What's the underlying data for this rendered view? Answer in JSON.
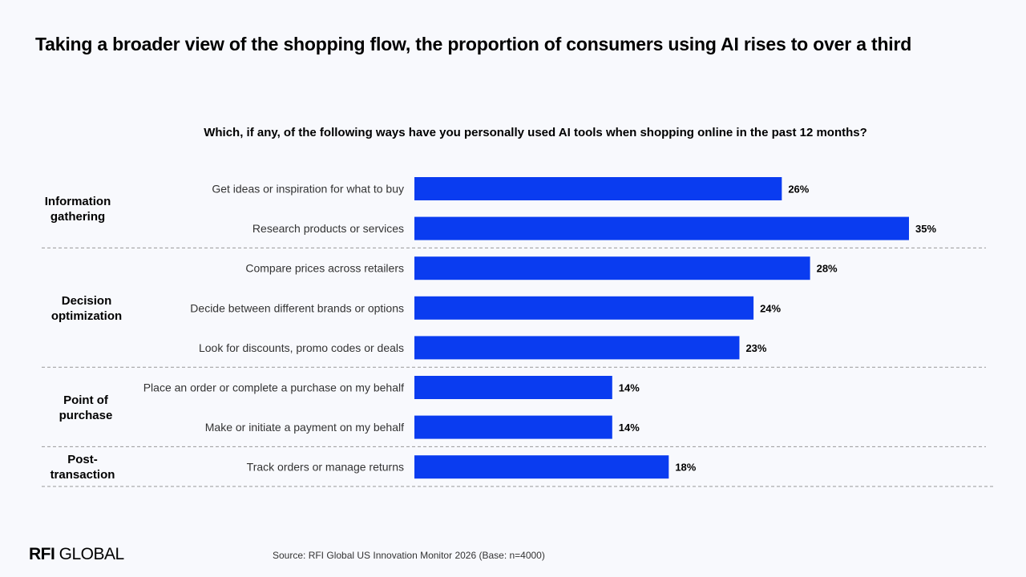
{
  "title": "Taking a broader view of the shopping flow, the proportion of consumers using AI rises to over a third",
  "subtitle": "Which, if any, of the following ways have you personally used AI tools when shopping online in the past 12 months?",
  "chart_data": {
    "type": "bar",
    "orientation": "horizontal",
    "title": "Taking a broader view of the shopping flow, the proportion of consumers using AI rises to over a third",
    "subtitle": "Which, if any, of the following ways have you personally used AI tools when shopping online in the past 12 months?",
    "categories": [
      "Get ideas or inspiration for what to buy",
      "Research products or services",
      "Compare prices across retailers",
      "Decide between different brands or options",
      "Look for discounts, promo codes or deals",
      "Place an order or complete a purchase on my behalf",
      "Make or initiate a payment on my behalf",
      "Track orders or manage returns"
    ],
    "values": [
      26,
      35,
      28,
      24,
      23,
      14,
      14,
      18
    ],
    "value_labels": [
      "26%",
      "35%",
      "28%",
      "24%",
      "23%",
      "14%",
      "14%",
      "18%"
    ],
    "groups": [
      {
        "name": "Information gathering",
        "lines": [
          "Information",
          "gathering"
        ],
        "count": 2
      },
      {
        "name": "Decision optimization",
        "lines": [
          "Decision",
          "optimization"
        ],
        "count": 3
      },
      {
        "name": "Point of purchase",
        "lines": [
          "Point of",
          "purchase"
        ],
        "count": 2
      },
      {
        "name": "Post-transaction",
        "lines": [
          "Post-",
          "transaction"
        ],
        "count": 1
      }
    ],
    "xlim": [
      0,
      35
    ],
    "bar_color": "#0a3cf0",
    "grid": false,
    "legend": "none"
  },
  "footer": {
    "logo_bold": "RFI",
    "logo_rest": " GLOBAL",
    "source": "Source: RFI Global US Innovation Monitor 2026 (Base: n=4000)"
  }
}
